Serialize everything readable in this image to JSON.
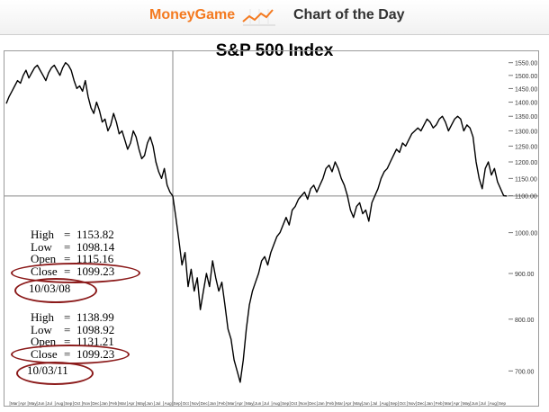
{
  "header": {
    "brand": "MoneyGame",
    "subtitle": "Chart of the Day",
    "brand_color": "#f47a20",
    "icon": "trend-line-icon"
  },
  "annotations": {
    "block1": {
      "high": "1153.82",
      "low": "1098.14",
      "open": "1115.16",
      "close": "1099.23",
      "date": "10/03/08"
    },
    "block2": {
      "high": "1138.99",
      "low": "1098.92",
      "open": "1131.21",
      "close": "1099.23",
      "date": "10/03/11"
    },
    "labels": {
      "high": "High",
      "low": "Low",
      "open": "Open",
      "close": "Close",
      "eq": "="
    },
    "highlight_color": "#8b1a1a"
  },
  "chart_data": {
    "type": "line",
    "title": "S&P 500 Index",
    "y_scale": "log",
    "ylim": [
      640,
      1600
    ],
    "y_ticks": [
      700,
      800,
      900,
      1000,
      1100,
      1150,
      1200,
      1250,
      1300,
      1350,
      1400,
      1450,
      1500,
      1550
    ],
    "y_tick_labels": [
      "700.00",
      "800.00",
      "900.00",
      "1000.00",
      "1100.00",
      "1150.00",
      "1200.00",
      "1250.00",
      "1300.00",
      "1350.00",
      "1400.00",
      "1450.00",
      "1500.00",
      "1550.00"
    ],
    "reference_line": 1099.23,
    "x_ticks": [
      "Mar",
      "Apr",
      "May",
      "Jun",
      "Jul",
      "Aug",
      "Sep",
      "Oct",
      "Nov",
      "Dec",
      "Jan",
      "Feb",
      "Mar",
      "Apr",
      "May",
      "Jun",
      "Jul",
      "Aug",
      "Sep",
      "Oct",
      "Nov",
      "Dec",
      "Jan",
      "Feb",
      "Mar",
      "Apr",
      "May",
      "Jun",
      "Jul",
      "Aug",
      "Sep",
      "Oct",
      "Nov",
      "Dec",
      "Jan",
      "Feb",
      "Mar",
      "Apr",
      "May",
      "Jun",
      "Jul",
      "Aug",
      "Sep",
      "Oct",
      "Nov",
      "Dec",
      "Jan",
      "Feb",
      "Mar",
      "Apr",
      "May",
      "Jun",
      "Jul",
      "Aug",
      "Sep"
    ],
    "line_color": "#000000",
    "series": [
      {
        "segment": "before",
        "values": [
          1395,
          1420,
          1440,
          1460,
          1480,
          1470,
          1500,
          1520,
          1490,
          1510,
          1530,
          1540,
          1520,
          1500,
          1480,
          1510,
          1530,
          1540,
          1520,
          1500,
          1530,
          1550,
          1540,
          1520,
          1480,
          1450,
          1460,
          1440,
          1480,
          1420,
          1380,
          1360,
          1400,
          1370,
          1330,
          1340,
          1300,
          1320,
          1360,
          1330,
          1290,
          1300,
          1270,
          1240,
          1260,
          1300,
          1280,
          1240,
          1210,
          1220,
          1260,
          1280,
          1250,
          1200,
          1170,
          1150,
          1180,
          1130,
          1110,
          1099
        ]
      },
      {
        "segment": "after",
        "values": [
          1099,
          1040,
          980,
          920,
          950,
          870,
          910,
          860,
          890,
          820,
          860,
          900,
          870,
          930,
          890,
          860,
          880,
          830,
          780,
          760,
          720,
          700,
          680,
          720,
          780,
          830,
          860,
          880,
          900,
          930,
          940,
          920,
          950,
          970,
          990,
          1000,
          1020,
          1040,
          1020,
          1060,
          1070,
          1090,
          1100,
          1110,
          1090,
          1120,
          1130,
          1110,
          1130,
          1150,
          1180,
          1190,
          1170,
          1200,
          1180,
          1150,
          1130,
          1100,
          1060,
          1040,
          1070,
          1080,
          1050,
          1060,
          1030,
          1080,
          1100,
          1120,
          1150,
          1170,
          1180,
          1200,
          1220,
          1240,
          1230,
          1260,
          1250,
          1270,
          1290,
          1300,
          1310,
          1300,
          1320,
          1340,
          1330,
          1310,
          1320,
          1340,
          1350,
          1330,
          1300,
          1320,
          1340,
          1350,
          1340,
          1300,
          1320,
          1310,
          1280,
          1200,
          1150,
          1120,
          1180,
          1200,
          1160,
          1180,
          1140,
          1120,
          1100,
          1099
        ]
      }
    ]
  }
}
